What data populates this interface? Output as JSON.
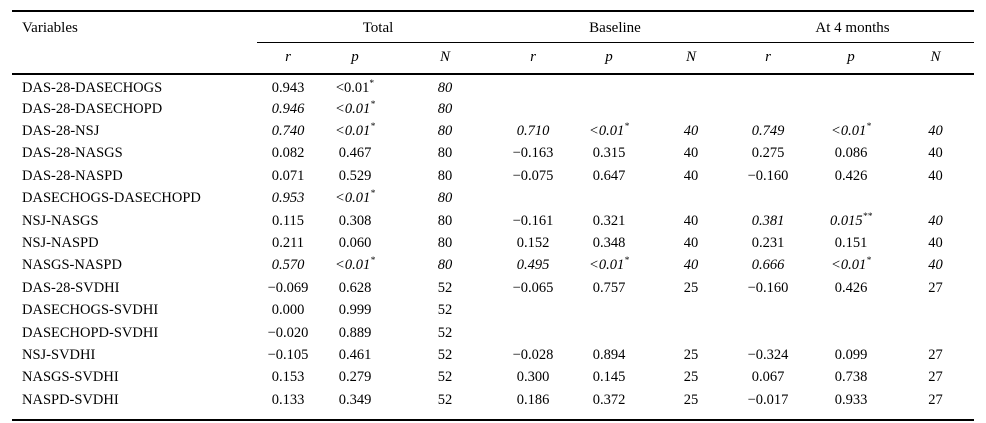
{
  "page": {
    "background_color": "#ffffff",
    "text_color": "#000000",
    "rule_color": "#000000"
  },
  "table": {
    "variables_header": "Variables",
    "groups": [
      {
        "label": "Total"
      },
      {
        "label": "Baseline"
      },
      {
        "label": "At 4 months"
      }
    ],
    "sub_headers": [
      "r",
      "p",
      "N"
    ],
    "rows": [
      {
        "variable": "DAS-28-DASECHOGS",
        "cells": [
          {
            "v": "0.943"
          },
          {
            "v": "<0.01",
            "sup": "*"
          },
          {
            "v": "80",
            "i": true
          },
          null,
          null,
          null,
          null,
          null,
          null
        ]
      },
      {
        "variable": "DAS-28-DASECHOPD",
        "cells": [
          {
            "v": "0.946",
            "i": true
          },
          {
            "v": "<0.01",
            "sup": "*",
            "i": true
          },
          {
            "v": "80",
            "i": true
          },
          null,
          null,
          null,
          null,
          null,
          null
        ]
      },
      {
        "variable": "DAS-28-NSJ",
        "cells": [
          {
            "v": "0.740",
            "i": true
          },
          {
            "v": "<0.01",
            "sup": "*",
            "i": true
          },
          {
            "v": "80",
            "i": true
          },
          {
            "v": "0.710",
            "i": true
          },
          {
            "v": "<0.01",
            "sup": "*",
            "i": true
          },
          {
            "v": "40",
            "i": true
          },
          {
            "v": "0.749",
            "i": true
          },
          {
            "v": "<0.01",
            "sup": "*",
            "i": true
          },
          {
            "v": "40",
            "i": true
          }
        ]
      },
      {
        "variable": "DAS-28-NASGS",
        "cells": [
          {
            "v": "0.082"
          },
          {
            "v": "0.467"
          },
          {
            "v": "80"
          },
          {
            "v": "−0.163"
          },
          {
            "v": "0.315"
          },
          {
            "v": "40"
          },
          {
            "v": "0.275"
          },
          {
            "v": "0.086"
          },
          {
            "v": "40"
          }
        ]
      },
      {
        "variable": "DAS-28-NASPD",
        "cells": [
          {
            "v": "0.071"
          },
          {
            "v": "0.529"
          },
          {
            "v": "80"
          },
          {
            "v": "−0.075"
          },
          {
            "v": "0.647"
          },
          {
            "v": "40"
          },
          {
            "v": "−0.160"
          },
          {
            "v": "0.426"
          },
          {
            "v": "40"
          }
        ]
      },
      {
        "variable": "DASECHOGS-DASECHOPD",
        "cells": [
          {
            "v": "0.953",
            "i": true
          },
          {
            "v": "<0.01",
            "sup": "*",
            "i": true
          },
          {
            "v": "80",
            "i": true
          },
          null,
          null,
          null,
          null,
          null,
          null
        ]
      },
      {
        "variable": "NSJ-NASGS",
        "cells": [
          {
            "v": "0.115"
          },
          {
            "v": "0.308"
          },
          {
            "v": "80"
          },
          {
            "v": "−0.161"
          },
          {
            "v": "0.321"
          },
          {
            "v": "40"
          },
          {
            "v": "0.381",
            "i": true
          },
          {
            "v": "0.015",
            "sup": "**",
            "i": true
          },
          {
            "v": "40",
            "i": true
          }
        ]
      },
      {
        "variable": "NSJ-NASPD",
        "cells": [
          {
            "v": "0.211"
          },
          {
            "v": "0.060"
          },
          {
            "v": "80"
          },
          {
            "v": "0.152"
          },
          {
            "v": "0.348"
          },
          {
            "v": "40"
          },
          {
            "v": "0.231"
          },
          {
            "v": "0.151"
          },
          {
            "v": "40"
          }
        ]
      },
      {
        "variable": "NASGS-NASPD",
        "cells": [
          {
            "v": "0.570",
            "i": true
          },
          {
            "v": "<0.01",
            "sup": "*",
            "i": true
          },
          {
            "v": "80",
            "i": true
          },
          {
            "v": "0.495",
            "i": true
          },
          {
            "v": "<0.01",
            "sup": "*",
            "i": true
          },
          {
            "v": "40",
            "i": true
          },
          {
            "v": "0.666",
            "i": true
          },
          {
            "v": "<0.01",
            "sup": "*",
            "i": true
          },
          {
            "v": "40",
            "i": true
          }
        ]
      },
      {
        "variable": "DAS-28-SVDHI",
        "cells": [
          {
            "v": "−0.069"
          },
          {
            "v": "0.628"
          },
          {
            "v": "52"
          },
          {
            "v": "−0.065"
          },
          {
            "v": "0.757"
          },
          {
            "v": "25"
          },
          {
            "v": "−0.160"
          },
          {
            "v": "0.426"
          },
          {
            "v": "27"
          }
        ]
      },
      {
        "variable": "DASECHOGS-SVDHI",
        "cells": [
          {
            "v": "0.000"
          },
          {
            "v": "0.999"
          },
          {
            "v": "52"
          },
          null,
          null,
          null,
          null,
          null,
          null
        ]
      },
      {
        "variable": "DASECHOPD-SVDHI",
        "cells": [
          {
            "v": "−0.020"
          },
          {
            "v": "0.889"
          },
          {
            "v": "52"
          },
          null,
          null,
          null,
          null,
          null,
          null
        ]
      },
      {
        "variable": "NSJ-SVDHI",
        "cells": [
          {
            "v": "−0.105"
          },
          {
            "v": "0.461"
          },
          {
            "v": "52"
          },
          {
            "v": "−0.028"
          },
          {
            "v": "0.894"
          },
          {
            "v": "25"
          },
          {
            "v": "−0.324"
          },
          {
            "v": "0.099"
          },
          {
            "v": "27"
          }
        ]
      },
      {
        "variable": "NASGS-SVDHI",
        "cells": [
          {
            "v": "0.153"
          },
          {
            "v": "0.279"
          },
          {
            "v": "52"
          },
          {
            "v": "0.300"
          },
          {
            "v": "0.145"
          },
          {
            "v": "25"
          },
          {
            "v": "0.067"
          },
          {
            "v": "0.738"
          },
          {
            "v": "27"
          }
        ]
      },
      {
        "variable": "NASPD-SVDHI",
        "cells": [
          {
            "v": "0.133"
          },
          {
            "v": "0.349"
          },
          {
            "v": "52"
          },
          {
            "v": "0.186"
          },
          {
            "v": "0.372"
          },
          {
            "v": "25"
          },
          {
            "v": "−0.017"
          },
          {
            "v": "0.933"
          },
          {
            "v": "27"
          }
        ]
      }
    ]
  }
}
